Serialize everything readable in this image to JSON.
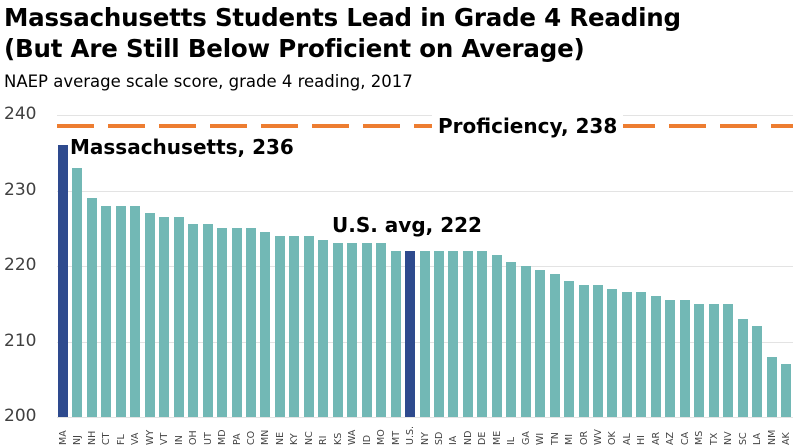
{
  "header": {
    "title_line1": "Massachusetts Students Lead in Grade 4 Reading",
    "title_line2": "(But Are Still Below Proficient on Average)",
    "subtitle": "NAEP average scale score, grade 4 reading, 2017"
  },
  "annotations": {
    "massachusetts": "Massachusetts, 236",
    "us_avg": "U.S. avg, 222",
    "proficiency": "Proficiency, 238"
  },
  "colors": {
    "bar": "#72b8b5",
    "highlight_bar": "#2e4a8e",
    "proficiency_line": "#ed7d31",
    "gridline": "#e3e3e3"
  },
  "chart_data": {
    "type": "bar",
    "title": "Massachusetts Students Lead in Grade 4 Reading (But Are Still Below Proficient on Average)",
    "subtitle": "NAEP average scale score, grade 4 reading, 2017",
    "xlabel": "",
    "ylabel": "",
    "ylim": [
      200,
      240
    ],
    "yticks": [
      200,
      210,
      220,
      230,
      240
    ],
    "grid": true,
    "legend": null,
    "categories": [
      "MA",
      "NJ",
      "NH",
      "CT",
      "FL",
      "VA",
      "WY",
      "VT",
      "IN",
      "OH",
      "UT",
      "MD",
      "PA",
      "CO",
      "MN",
      "NE",
      "KY",
      "NC",
      "RI",
      "KS",
      "WA",
      "ID",
      "MO",
      "MT",
      "U.S.",
      "NY",
      "SD",
      "IA",
      "ND",
      "DE",
      "ME",
      "IL",
      "GA",
      "WI",
      "TN",
      "MI",
      "OR",
      "WV",
      "OK",
      "AL",
      "HI",
      "AR",
      "AZ",
      "CA",
      "MS",
      "TX",
      "NV",
      "SC",
      "LA",
      "NM",
      "AK"
    ],
    "values": [
      236,
      233,
      229,
      228,
      228,
      228,
      227,
      226.5,
      226.5,
      225.5,
      225.5,
      225,
      225,
      225,
      224.5,
      224,
      224,
      224,
      223.5,
      223,
      223,
      223,
      223,
      222,
      222,
      222,
      222,
      222,
      222,
      222,
      221.5,
      220.5,
      220,
      219.5,
      219,
      218,
      217.5,
      217.5,
      217,
      216.5,
      216.5,
      216,
      215.5,
      215.5,
      215,
      215,
      215,
      213,
      212,
      208,
      207
    ],
    "highlighted": [
      "MA",
      "U.S."
    ],
    "reference_line": {
      "label": "Proficiency, 238",
      "value": 238,
      "style": "dashed",
      "color": "#ed7d31"
    },
    "annotations": [
      {
        "text": "Massachusetts, 236",
        "target": "MA"
      },
      {
        "text": "U.S. avg, 222",
        "target": "U.S."
      },
      {
        "text": "Proficiency, 238",
        "target": "reference_line"
      }
    ]
  }
}
